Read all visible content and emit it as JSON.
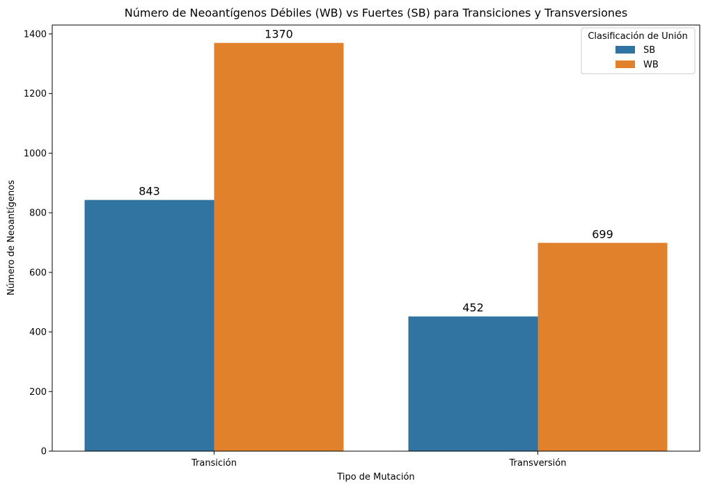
{
  "chart_data": {
    "type": "bar",
    "title": "Número de Neoantígenos Débiles (WB) vs Fuertes (SB) para Transiciones y Transversiones",
    "xlabel": "Tipo de Mutación",
    "ylabel": "Número de Neoantígenos",
    "categories": [
      "Transición",
      "Transversión"
    ],
    "series": [
      {
        "name": "SB",
        "color": "#3274a1",
        "values": [
          843,
          452
        ]
      },
      {
        "name": "WB",
        "color": "#e1812c",
        "values": [
          1370,
          699
        ]
      }
    ],
    "ylim": [
      0,
      1430
    ],
    "yticks": [
      0,
      200,
      400,
      600,
      800,
      1000,
      1200,
      1400
    ],
    "grid": false,
    "legend": {
      "title": "Clasificación de Unión",
      "position": "top-right"
    }
  }
}
